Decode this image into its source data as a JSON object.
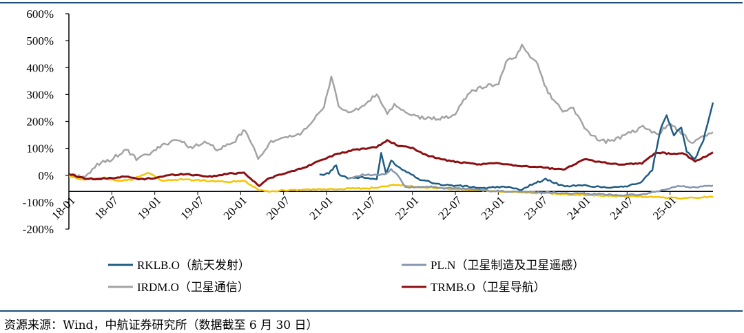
{
  "chart_data": {
    "type": "line",
    "ylabel": "",
    "xlabel": "",
    "ylim": [
      -200,
      600
    ],
    "y_ticks": [
      "600%",
      "500%",
      "400%",
      "300%",
      "200%",
      "100%",
      "0%",
      "-100%",
      "-200%"
    ],
    "x_ticks": [
      "18-01",
      "18-07",
      "19-01",
      "19-07",
      "20-01",
      "20-07",
      "21-01",
      "21-07",
      "22-01",
      "22-07",
      "23-01",
      "23-07",
      "24-01",
      "24-07",
      "25-01"
    ],
    "grid": false,
    "legend_position": "bottom",
    "series": [
      {
        "name": "RKLB.O（航天发射）",
        "color": "#1f5c82",
        "points": [
          [
            "2020-12-01",
            0
          ],
          [
            "2021-01-10",
            8
          ],
          [
            "2021-02-10",
            38
          ],
          [
            "2021-02-20",
            5
          ],
          [
            "2021-04-01",
            -10
          ],
          [
            "2021-06-01",
            -8
          ],
          [
            "2021-08-01",
            -15
          ],
          [
            "2021-08-20",
            80
          ],
          [
            "2021-09-10",
            5
          ],
          [
            "2021-10-01",
            55
          ],
          [
            "2021-11-10",
            25
          ],
          [
            "2021-12-15",
            10
          ],
          [
            "2022-02-01",
            -15
          ],
          [
            "2022-05-01",
            -35
          ],
          [
            "2022-08-01",
            -40
          ],
          [
            "2022-11-01",
            -48
          ],
          [
            "2023-02-01",
            -42
          ],
          [
            "2023-04-01",
            -55
          ],
          [
            "2023-06-01",
            -30
          ],
          [
            "2023-07-20",
            -15
          ],
          [
            "2023-10-01",
            -40
          ],
          [
            "2024-01-01",
            -38
          ],
          [
            "2024-04-01",
            -45
          ],
          [
            "2024-07-01",
            -40
          ],
          [
            "2024-09-01",
            -25
          ],
          [
            "2024-10-15",
            20
          ],
          [
            "2024-11-20",
            175
          ],
          [
            "2024-12-15",
            220
          ],
          [
            "2025-01-15",
            150
          ],
          [
            "2025-02-15",
            180
          ],
          [
            "2025-03-10",
            90
          ],
          [
            "2025-04-15",
            60
          ],
          [
            "2025-05-20",
            130
          ],
          [
            "2025-06-30",
            270
          ]
        ]
      },
      {
        "name": "PL.N（卫星制造及卫星遥感）",
        "color": "#8796ad",
        "points": [
          [
            "2021-04-01",
            -12
          ],
          [
            "2021-06-01",
            2
          ],
          [
            "2021-08-01",
            0
          ],
          [
            "2021-09-10",
            5
          ],
          [
            "2021-10-01",
            22
          ],
          [
            "2021-11-01",
            -3
          ],
          [
            "2021-12-01",
            -45
          ],
          [
            "2022-03-01",
            -42
          ],
          [
            "2022-06-01",
            -48
          ],
          [
            "2022-09-01",
            -50
          ],
          [
            "2022-12-01",
            -58
          ],
          [
            "2023-03-01",
            -60
          ],
          [
            "2023-06-01",
            -62
          ],
          [
            "2023-09-01",
            -65
          ],
          [
            "2023-12-01",
            -68
          ],
          [
            "2024-03-01",
            -70
          ],
          [
            "2024-06-01",
            -74
          ],
          [
            "2024-09-01",
            -72
          ],
          [
            "2024-12-01",
            -55
          ],
          [
            "2025-02-01",
            -40
          ],
          [
            "2025-04-01",
            -45
          ],
          [
            "2025-06-30",
            -38
          ]
        ]
      },
      {
        "name": "IRDM.O（卫星通信）",
        "color": "#a3a3a3",
        "points": [
          [
            "2018-01-01",
            0
          ],
          [
            "2018-03-01",
            -5
          ],
          [
            "2018-04-01",
            5
          ],
          [
            "2018-05-01",
            40
          ],
          [
            "2018-07-01",
            60
          ],
          [
            "2018-09-01",
            95
          ],
          [
            "2018-10-15",
            60
          ],
          [
            "2018-12-01",
            75
          ],
          [
            "2019-02-01",
            110
          ],
          [
            "2019-04-01",
            135
          ],
          [
            "2019-06-01",
            105
          ],
          [
            "2019-08-01",
            120
          ],
          [
            "2019-10-01",
            95
          ],
          [
            "2019-12-01",
            120
          ],
          [
            "2020-01-20",
            170
          ],
          [
            "2020-03-15",
            60
          ],
          [
            "2020-05-01",
            120
          ],
          [
            "2020-07-01",
            135
          ],
          [
            "2020-09-01",
            150
          ],
          [
            "2020-11-01",
            200
          ],
          [
            "2020-12-20",
            250
          ],
          [
            "2021-01-20",
            370
          ],
          [
            "2021-02-20",
            260
          ],
          [
            "2021-04-01",
            230
          ],
          [
            "2021-06-01",
            255
          ],
          [
            "2021-08-01",
            300
          ],
          [
            "2021-09-15",
            230
          ],
          [
            "2021-10-15",
            260
          ],
          [
            "2021-12-01",
            230
          ],
          [
            "2022-02-01",
            215
          ],
          [
            "2022-04-01",
            210
          ],
          [
            "2022-06-01",
            215
          ],
          [
            "2022-07-01",
            230
          ],
          [
            "2022-09-01",
            310
          ],
          [
            "2022-11-01",
            330
          ],
          [
            "2023-01-01",
            340
          ],
          [
            "2023-02-01",
            420
          ],
          [
            "2023-03-15",
            440
          ],
          [
            "2023-04-10",
            480
          ],
          [
            "2023-05-15",
            445
          ],
          [
            "2023-06-15",
            420
          ],
          [
            "2023-07-15",
            330
          ],
          [
            "2023-08-15",
            290
          ],
          [
            "2023-10-01",
            240
          ],
          [
            "2023-11-15",
            250
          ],
          [
            "2024-01-01",
            175
          ],
          [
            "2024-02-15",
            140
          ],
          [
            "2024-04-01",
            125
          ],
          [
            "2024-06-01",
            140
          ],
          [
            "2024-08-01",
            165
          ],
          [
            "2024-09-15",
            180
          ],
          [
            "2024-11-01",
            150
          ],
          [
            "2024-12-01",
            170
          ],
          [
            "2025-01-01",
            185
          ],
          [
            "2025-02-15",
            160
          ],
          [
            "2025-04-01",
            120
          ],
          [
            "2025-06-30",
            160
          ]
        ]
      },
      {
        "name": "TRMB.O（卫星导航）",
        "color": "#8b0f12",
        "points": [
          [
            "2018-01-01",
            5
          ],
          [
            "2018-03-01",
            -10
          ],
          [
            "2018-05-01",
            -15
          ],
          [
            "2018-07-01",
            -10
          ],
          [
            "2018-09-01",
            -5
          ],
          [
            "2018-11-01",
            -15
          ],
          [
            "2019-01-01",
            -10
          ],
          [
            "2019-03-01",
            0
          ],
          [
            "2019-05-01",
            5
          ],
          [
            "2019-07-01",
            0
          ],
          [
            "2019-09-01",
            -5
          ],
          [
            "2019-11-01",
            5
          ],
          [
            "2020-01-15",
            10
          ],
          [
            "2020-03-20",
            -40
          ],
          [
            "2020-05-01",
            -10
          ],
          [
            "2020-07-01",
            5
          ],
          [
            "2020-10-01",
            30
          ],
          [
            "2020-12-01",
            55
          ],
          [
            "2021-02-01",
            75
          ],
          [
            "2021-05-01",
            95
          ],
          [
            "2021-08-01",
            105
          ],
          [
            "2021-09-15",
            130
          ],
          [
            "2021-11-01",
            110
          ],
          [
            "2022-01-01",
            100
          ],
          [
            "2022-03-01",
            75
          ],
          [
            "2022-05-01",
            60
          ],
          [
            "2022-07-01",
            50
          ],
          [
            "2022-10-01",
            40
          ],
          [
            "2023-01-01",
            45
          ],
          [
            "2023-04-01",
            35
          ],
          [
            "2023-07-01",
            30
          ],
          [
            "2023-10-01",
            20
          ],
          [
            "2024-01-01",
            60
          ],
          [
            "2024-03-01",
            50
          ],
          [
            "2024-06-01",
            40
          ],
          [
            "2024-09-01",
            45
          ],
          [
            "2024-11-01",
            85
          ],
          [
            "2025-01-01",
            80
          ],
          [
            "2025-03-01",
            80
          ],
          [
            "2025-04-15",
            50
          ],
          [
            "2025-06-30",
            85
          ]
        ]
      },
      {
        "name": "",
        "color": "#f5c400",
        "points": [
          [
            "2018-01-01",
            -5
          ],
          [
            "2018-03-01",
            -15
          ],
          [
            "2018-06-01",
            -10
          ],
          [
            "2018-08-01",
            -20
          ],
          [
            "2018-10-01",
            -15
          ],
          [
            "2018-12-01",
            10
          ],
          [
            "2019-02-01",
            -20
          ],
          [
            "2019-05-01",
            -15
          ],
          [
            "2019-08-01",
            -20
          ],
          [
            "2019-11-01",
            -25
          ],
          [
            "2020-01-15",
            -20
          ],
          [
            "2020-03-20",
            -55
          ],
          [
            "2020-05-01",
            -60
          ],
          [
            "2020-08-01",
            -55
          ],
          [
            "2020-12-01",
            -52
          ],
          [
            "2021-03-01",
            -50
          ],
          [
            "2021-07-01",
            -48
          ],
          [
            "2021-11-01",
            -35
          ],
          [
            "2022-02-01",
            -45
          ],
          [
            "2022-06-01",
            -50
          ],
          [
            "2022-10-01",
            -55
          ],
          [
            "2023-02-01",
            -62
          ],
          [
            "2023-06-01",
            -65
          ],
          [
            "2023-10-01",
            -70
          ],
          [
            "2024-02-01",
            -75
          ],
          [
            "2024-06-01",
            -78
          ],
          [
            "2024-10-01",
            -80
          ],
          [
            "2025-02-01",
            -85
          ],
          [
            "2025-06-30",
            -80
          ]
        ]
      }
    ]
  },
  "footer": {
    "source": "资源来源：Wind，中航证券研究所（数据截至 6 月 30 日）"
  }
}
